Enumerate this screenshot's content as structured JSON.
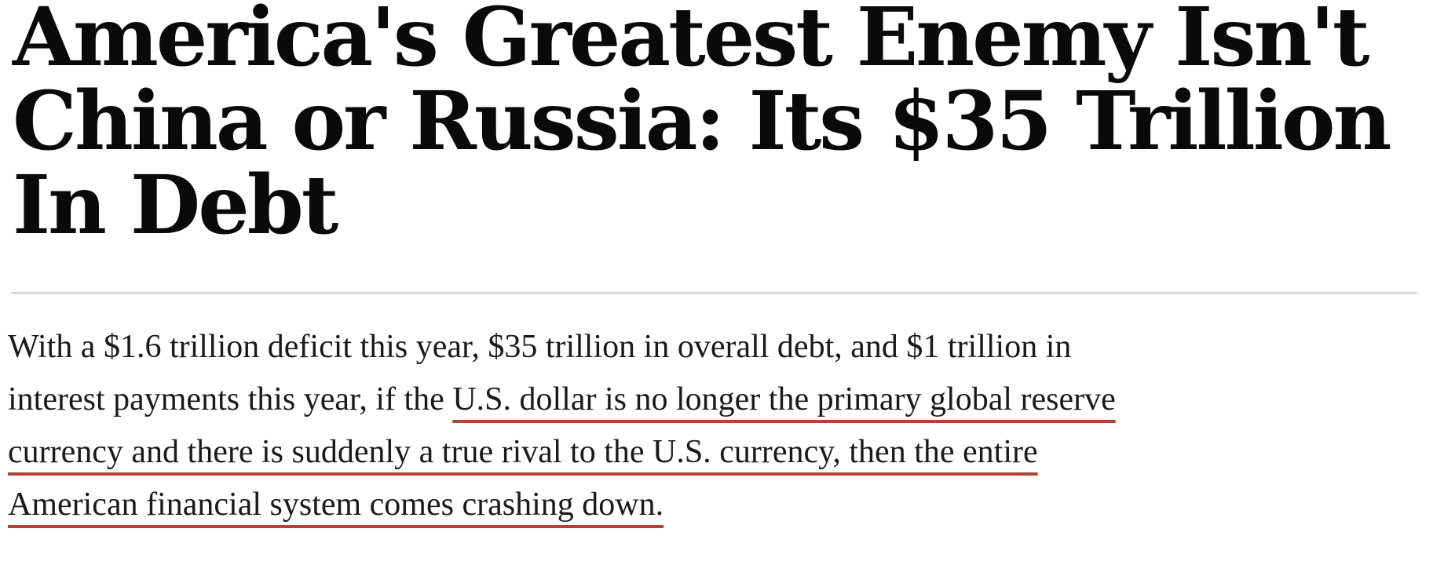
{
  "article": {
    "headline": "America's Greatest Enemy Isn't\nChina or Russia: Its $35 Trillion\nIn Debt",
    "paragraph": {
      "lead": "With a $1.6 trillion deficit this year, $35 trillion in overall debt, and $1 trillion in\ninterest payments this year, if the ",
      "underlined": "U.S. dollar is no longer the primary global reserve\ncurrency and there is suddenly a true rival to the U.S. currency, then the entire\nAmerican financial system comes crashing down."
    }
  },
  "colors": {
    "background": "#ffffff",
    "headline_text": "#0a0a0a",
    "body_text": "#1a1a1a",
    "divider": "#dcdcdc",
    "annotation_underline": "#b04331"
  }
}
